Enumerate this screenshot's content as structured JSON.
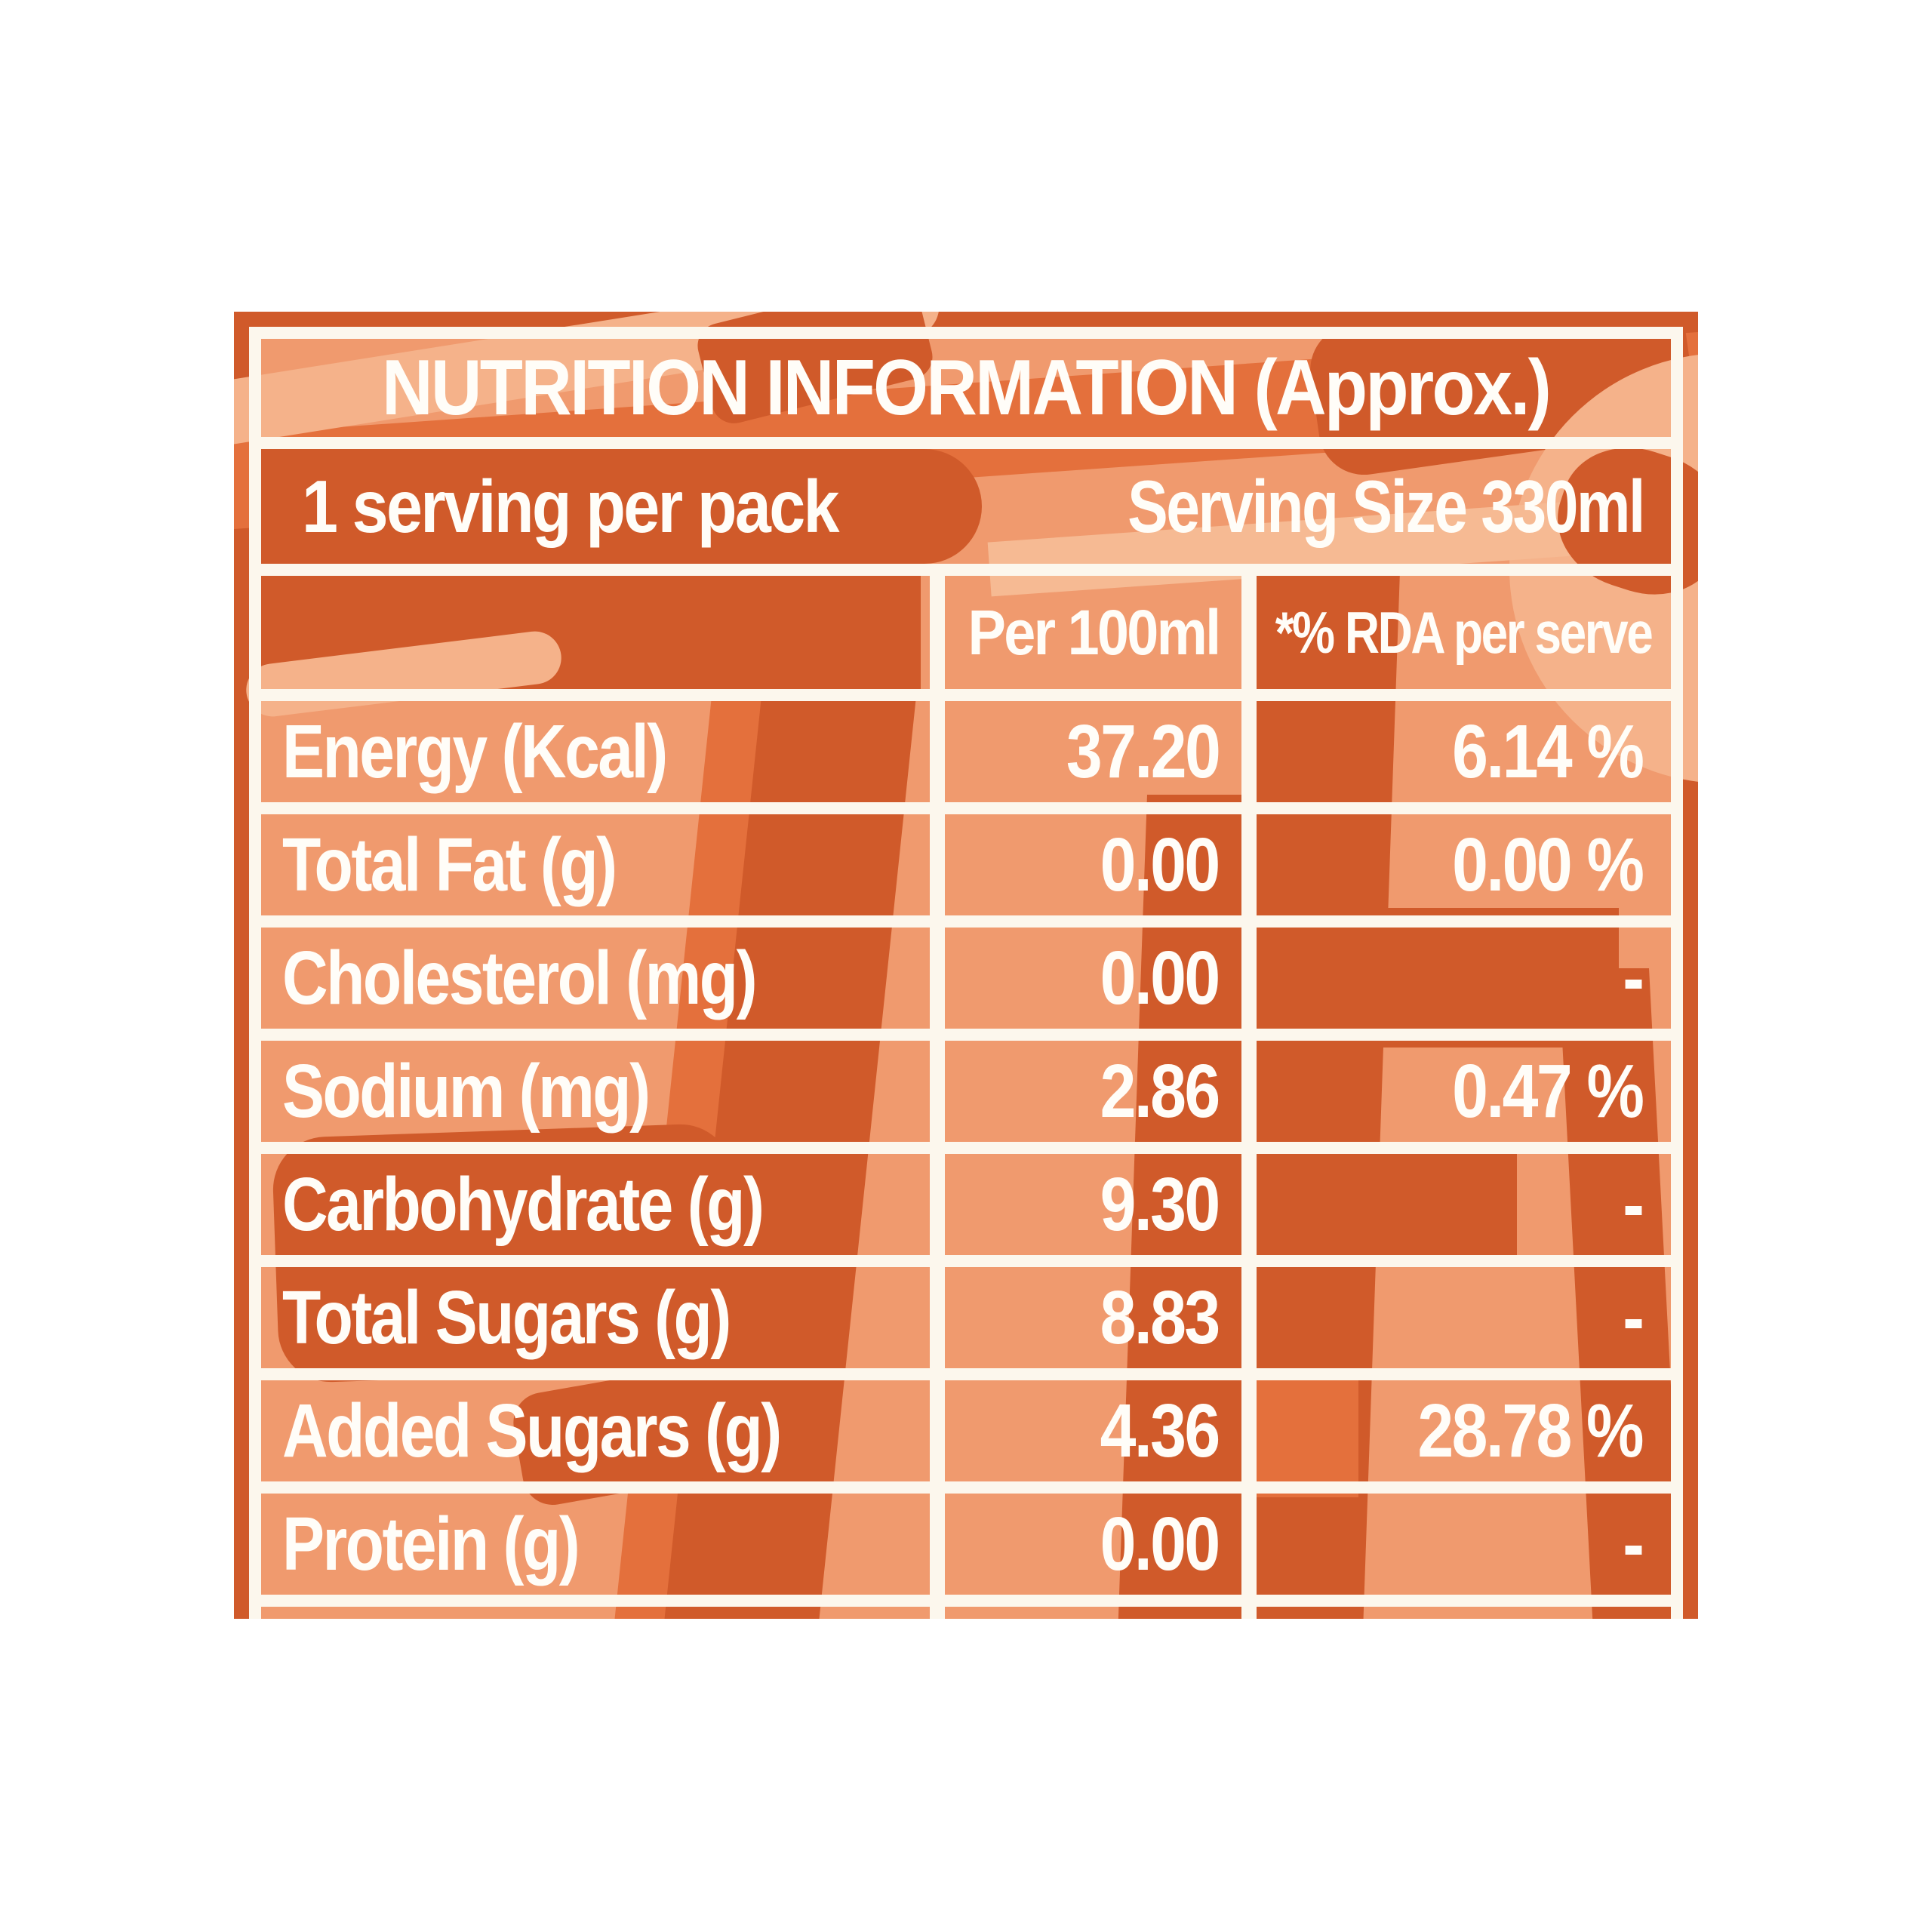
{
  "label": {
    "title": "NUTRITION INFORMATION (Approx.)",
    "serving_row": {
      "servings": "1 serving per pack",
      "serving_size": "Serving Size 330ml"
    },
    "columns": {
      "per": "Per 100ml",
      "rda": "*% RDA per serve"
    },
    "rows": [
      {
        "label": "Energy (Kcal)",
        "per_100ml": "37.20",
        "rda": "6.14 %"
      },
      {
        "label": "Total Fat (g)",
        "per_100ml": "0.00",
        "rda": "0.00 %"
      },
      {
        "label": "Cholesterol (mg)",
        "per_100ml": "0.00",
        "rda": "-"
      },
      {
        "label": "Sodium (mg)",
        "per_100ml": "2.86",
        "rda": "0.47 %"
      },
      {
        "label": "Carbohydrate (g)",
        "per_100ml": "9.30",
        "rda": "-"
      },
      {
        "label": "Total Sugars (g)",
        "per_100ml": "8.83",
        "rda": "-"
      },
      {
        "label": "Added Sugars (g)",
        "per_100ml": "4.36",
        "rda": "28.78 %"
      },
      {
        "label": "Protein (g)",
        "per_100ml": "0.00",
        "rda": "-"
      }
    ],
    "colors": {
      "dark_orange": "#d05a2a",
      "medium_orange": "#e4703c",
      "light_orange": "#f09a6e",
      "pale_orange": "#f5b28a",
      "line_cream": "#fcf7ed",
      "text_white": "#fffdf8"
    }
  }
}
